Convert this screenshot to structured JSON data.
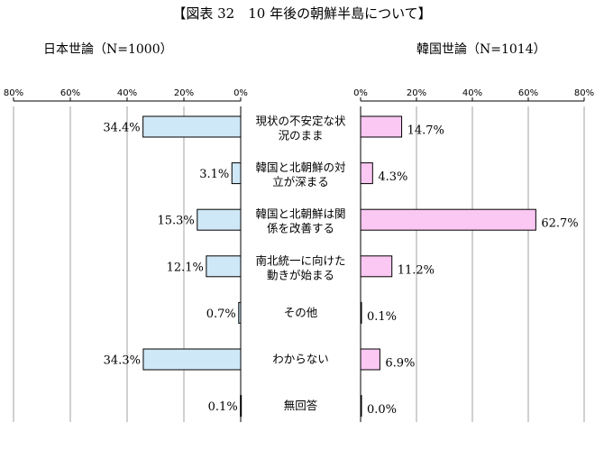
{
  "title": "【図表 32　10 年後の朝鮮半島について】",
  "left_subtitle": "日本世論（N=1000）",
  "right_subtitle": "韓国世論（N=1014）",
  "colors": {
    "japan_fill": "#cfe8f7",
    "korea_fill": "#fbc7f3",
    "bar_stroke": "#000000",
    "grid": "#a0a0a0"
  },
  "chart_data": {
    "type": "bar",
    "categories": [
      [
        "現状の不安定な状",
        "況のまま"
      ],
      [
        "韓国と北朝鮮の対",
        "立が深まる"
      ],
      [
        "韓国と北朝鮮は関",
        "係を改善する"
      ],
      [
        "南北統一に向けた",
        "動きが始まる"
      ],
      [
        "その他"
      ],
      [
        "わからない"
      ],
      [
        "無回答"
      ]
    ],
    "series": [
      {
        "name": "日本世論（N=1000）",
        "values": [
          34.4,
          3.1,
          15.3,
          12.1,
          0.7,
          34.3,
          0.1
        ],
        "labels": [
          "34.4%",
          "3.1%",
          "15.3%",
          "12.1%",
          "0.7%",
          "34.3%",
          "0.1%"
        ]
      },
      {
        "name": "韓国世論（N=1014）",
        "values": [
          14.7,
          4.3,
          62.7,
          11.2,
          0.1,
          6.9,
          0.0
        ],
        "labels": [
          "14.7%",
          "4.3%",
          "62.7%",
          "11.2%",
          "0.1%",
          "6.9%",
          "0.0%"
        ]
      }
    ],
    "left_ticks": [
      "80%",
      "60%",
      "40%",
      "20%",
      "0%"
    ],
    "right_ticks": [
      "0%",
      "20%",
      "40%",
      "60%",
      "80%"
    ],
    "xlim": [
      0,
      80
    ],
    "grid": false
  }
}
